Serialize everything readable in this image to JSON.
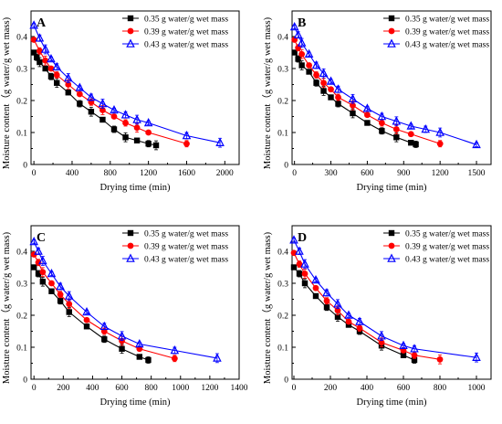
{
  "figure": {
    "panel_labels": [
      "A",
      "B",
      "C",
      "D"
    ],
    "xlabel": "Drying time (min)",
    "ylabel": "Moisture content（g water/g wet mass)",
    "colors": {
      "s035": "#000000",
      "s039": "#ff0000",
      "s043": "#0000ff"
    }
  },
  "chart_data": [
    {
      "type": "line",
      "panel": "A",
      "xlabel": "Drying time (min)",
      "ylabel": "Moisture content（g water/g wet mass)",
      "xlim": [
        -30,
        2150
      ],
      "ylim": [
        0,
        0.48
      ],
      "xticks": [
        0,
        400,
        800,
        1200,
        1600,
        2000
      ],
      "yticks": [
        0.0,
        0.1,
        0.2,
        0.3,
        0.4
      ],
      "legend_position": "top-right",
      "series": [
        {
          "name": "0.35 g water/g wet mass",
          "color": "#000000",
          "marker": "square",
          "x": [
            0,
            30,
            60,
            120,
            180,
            240,
            360,
            480,
            600,
            720,
            840,
            960,
            1080,
            1200,
            1280
          ],
          "y": [
            0.35,
            0.335,
            0.32,
            0.3,
            0.275,
            0.255,
            0.225,
            0.19,
            0.165,
            0.14,
            0.11,
            0.085,
            0.075,
            0.065,
            0.06
          ]
        },
        {
          "name": "0.39 g water/g wet mass",
          "color": "#ff0000",
          "marker": "circle",
          "x": [
            0,
            60,
            120,
            180,
            240,
            360,
            480,
            600,
            720,
            840,
            960,
            1080,
            1200,
            1600
          ],
          "y": [
            0.39,
            0.355,
            0.325,
            0.3,
            0.28,
            0.25,
            0.22,
            0.195,
            0.17,
            0.15,
            0.13,
            0.115,
            0.1,
            0.065
          ]
        },
        {
          "name": "0.43 g water/g wet mass",
          "color": "#0000ff",
          "marker": "triangle",
          "x": [
            0,
            60,
            120,
            180,
            240,
            360,
            480,
            600,
            720,
            840,
            960,
            1080,
            1200,
            1600,
            1950
          ],
          "y": [
            0.435,
            0.395,
            0.36,
            0.33,
            0.305,
            0.27,
            0.24,
            0.21,
            0.19,
            0.17,
            0.155,
            0.14,
            0.13,
            0.09,
            0.068
          ]
        }
      ]
    },
    {
      "type": "line",
      "panel": "B",
      "xlabel": "Drying time (min)",
      "ylabel": "Moisture content（g water/g wet mass)",
      "xlim": [
        -20,
        1620
      ],
      "ylim": [
        0,
        0.48
      ],
      "xticks": [
        0,
        300,
        600,
        900,
        1200,
        1500
      ],
      "yticks": [
        0.0,
        0.1,
        0.2,
        0.3,
        0.4
      ],
      "legend_position": "top-right",
      "series": [
        {
          "name": "0.35 g water/g wet mass",
          "color": "#000000",
          "marker": "square",
          "x": [
            0,
            30,
            60,
            120,
            180,
            240,
            300,
            360,
            480,
            600,
            720,
            840,
            960,
            1000
          ],
          "y": [
            0.35,
            0.33,
            0.31,
            0.29,
            0.255,
            0.23,
            0.21,
            0.19,
            0.16,
            0.13,
            0.105,
            0.085,
            0.068,
            0.063
          ]
        },
        {
          "name": "0.39 g water/g wet mass",
          "color": "#ff0000",
          "marker": "circle",
          "x": [
            0,
            30,
            60,
            120,
            180,
            240,
            300,
            360,
            480,
            600,
            720,
            840,
            960,
            1200
          ],
          "y": [
            0.39,
            0.365,
            0.345,
            0.31,
            0.28,
            0.255,
            0.235,
            0.21,
            0.185,
            0.155,
            0.13,
            0.11,
            0.095,
            0.065
          ]
        },
        {
          "name": "0.43 g water/g wet mass",
          "color": "#0000ff",
          "marker": "triangle",
          "x": [
            0,
            30,
            60,
            120,
            180,
            240,
            300,
            360,
            480,
            600,
            720,
            840,
            960,
            1080,
            1200,
            1500
          ],
          "y": [
            0.43,
            0.405,
            0.38,
            0.345,
            0.31,
            0.285,
            0.26,
            0.235,
            0.205,
            0.175,
            0.15,
            0.135,
            0.12,
            0.11,
            0.1,
            0.062
          ]
        }
      ]
    },
    {
      "type": "line",
      "panel": "C",
      "xlabel": "Drying time (min)",
      "ylabel": "Moisture content（g water/g wet mass)",
      "xlim": [
        -20,
        1400
      ],
      "ylim": [
        0,
        0.48
      ],
      "xticks": [
        0,
        200,
        400,
        600,
        800,
        1000,
        1200,
        1400
      ],
      "yticks": [
        0.0,
        0.1,
        0.2,
        0.3,
        0.4
      ],
      "legend_position": "top-right",
      "series": [
        {
          "name": "0.35 g water/g wet mass",
          "color": "#000000",
          "marker": "square",
          "x": [
            0,
            30,
            60,
            120,
            180,
            240,
            360,
            480,
            600,
            720,
            780
          ],
          "y": [
            0.35,
            0.33,
            0.305,
            0.275,
            0.245,
            0.21,
            0.165,
            0.125,
            0.095,
            0.07,
            0.06
          ]
        },
        {
          "name": "0.39 g water/g wet mass",
          "color": "#ff0000",
          "marker": "circle",
          "x": [
            0,
            30,
            60,
            120,
            180,
            240,
            360,
            480,
            600,
            720,
            960
          ],
          "y": [
            0.39,
            0.365,
            0.335,
            0.3,
            0.265,
            0.235,
            0.185,
            0.15,
            0.12,
            0.095,
            0.065
          ]
        },
        {
          "name": "0.43 g water/g wet mass",
          "color": "#0000ff",
          "marker": "triangle",
          "x": [
            0,
            30,
            60,
            120,
            180,
            240,
            360,
            480,
            600,
            720,
            960,
            1250
          ],
          "y": [
            0.43,
            0.4,
            0.37,
            0.33,
            0.29,
            0.26,
            0.21,
            0.165,
            0.135,
            0.11,
            0.09,
            0.066
          ]
        }
      ]
    },
    {
      "type": "line",
      "panel": "D",
      "xlabel": "Drying time (min)",
      "ylabel": "Moisture content（g water/g wet mass)",
      "xlim": [
        -10,
        1080
      ],
      "ylim": [
        0,
        0.48
      ],
      "xticks": [
        0,
        200,
        400,
        600,
        800,
        1000
      ],
      "yticks": [
        0.0,
        0.1,
        0.2,
        0.3,
        0.4
      ],
      "legend_position": "top-right",
      "series": [
        {
          "name": "0.35 g water/g wet mass",
          "color": "#000000",
          "marker": "square",
          "x": [
            0,
            30,
            60,
            120,
            180,
            240,
            300,
            360,
            480,
            600,
            660
          ],
          "y": [
            0.35,
            0.33,
            0.3,
            0.26,
            0.225,
            0.195,
            0.17,
            0.15,
            0.105,
            0.075,
            0.06
          ]
        },
        {
          "name": "0.39 g water/g wet mass",
          "color": "#ff0000",
          "marker": "circle",
          "x": [
            0,
            30,
            60,
            120,
            180,
            240,
            300,
            360,
            480,
            600,
            660,
            800
          ],
          "y": [
            0.395,
            0.36,
            0.33,
            0.285,
            0.245,
            0.215,
            0.18,
            0.16,
            0.115,
            0.09,
            0.075,
            0.062
          ]
        },
        {
          "name": "0.43 g water/g wet mass",
          "color": "#0000ff",
          "marker": "triangle",
          "x": [
            0,
            30,
            60,
            120,
            180,
            240,
            300,
            360,
            480,
            600,
            660,
            1000
          ],
          "y": [
            0.435,
            0.4,
            0.36,
            0.31,
            0.27,
            0.235,
            0.2,
            0.18,
            0.135,
            0.105,
            0.095,
            0.068
          ]
        }
      ]
    }
  ]
}
